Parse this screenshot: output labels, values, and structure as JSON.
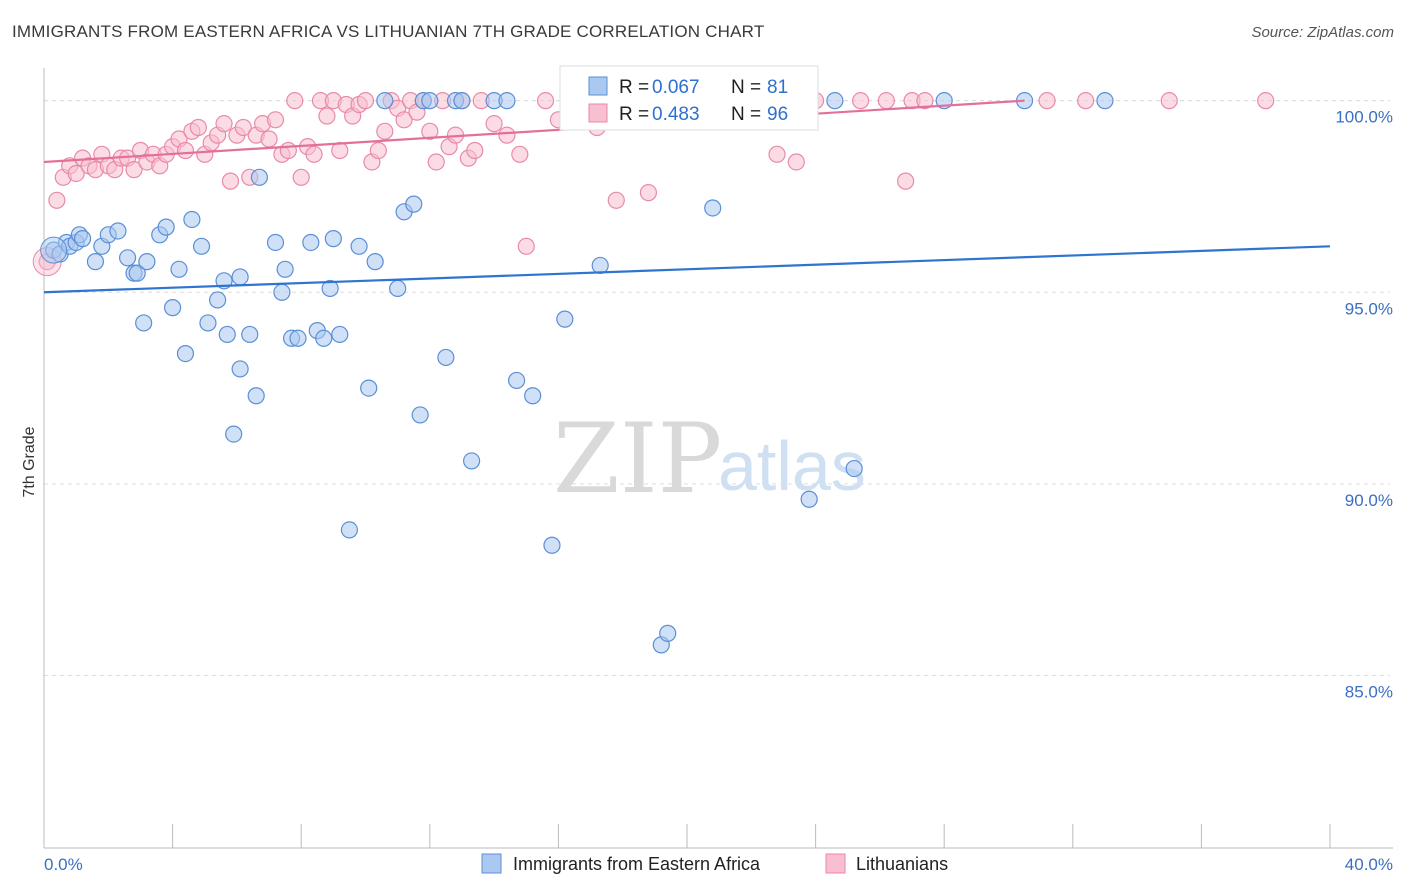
{
  "header": {
    "title": "IMMIGRANTS FROM EASTERN AFRICA VS LITHUANIAN 7TH GRADE CORRELATION CHART",
    "source": "Source: ZipAtlas.com"
  },
  "watermark": {
    "zip": "ZIP",
    "atlas": "atlas"
  },
  "colors": {
    "blue_fill": "#aac8f0",
    "blue_stroke": "#5b8fd6",
    "blue_line": "#2f74d0",
    "pink_fill": "#f8bfd0",
    "pink_stroke": "#e98aa8",
    "pink_line": "#e2709a",
    "grid": "#dddddd",
    "axis_text": "#3a6fc4"
  },
  "stats": [
    {
      "r_label": "R = ",
      "r_value": "0.067",
      "n_label": "N = ",
      "n_value": "81"
    },
    {
      "r_label": "R = ",
      "r_value": "0.483",
      "n_label": "N = ",
      "n_value": "96"
    }
  ],
  "chart_data": {
    "type": "scatter",
    "title": "IMMIGRANTS FROM EASTERN AFRICA VS LITHUANIAN 7TH GRADE CORRELATION CHART",
    "xlabel": "",
    "ylabel": "7th Grade",
    "xlim": [
      0,
      40
    ],
    "ylim": [
      80.5,
      100.8
    ],
    "x_tick_labels": [
      "0.0%",
      "40.0%"
    ],
    "y_ticks": [
      85,
      90,
      95,
      100
    ],
    "y_tick_labels": [
      "85.0%",
      "90.0%",
      "95.0%",
      "100.0%"
    ],
    "grid": true,
    "legend_position": "bottom",
    "series": [
      {
        "name": "Immigrants from Eastern Africa",
        "R": 0.067,
        "N": 81,
        "trend": {
          "x": [
            0,
            40
          ],
          "y": [
            95.0,
            96.2
          ]
        },
        "points": [
          [
            0.3,
            96.1
          ],
          [
            0.5,
            96.0
          ],
          [
            0.7,
            96.3
          ],
          [
            0.8,
            96.2
          ],
          [
            1.0,
            96.3
          ],
          [
            1.1,
            96.5
          ],
          [
            1.2,
            96.4
          ],
          [
            1.6,
            95.8
          ],
          [
            1.8,
            96.2
          ],
          [
            2.0,
            96.5
          ],
          [
            2.3,
            96.6
          ],
          [
            2.6,
            95.9
          ],
          [
            2.8,
            95.5
          ],
          [
            2.9,
            95.5
          ],
          [
            3.1,
            94.2
          ],
          [
            3.2,
            95.8
          ],
          [
            3.6,
            96.5
          ],
          [
            3.8,
            96.7
          ],
          [
            4.0,
            94.6
          ],
          [
            4.2,
            95.6
          ],
          [
            4.4,
            93.4
          ],
          [
            4.6,
            96.9
          ],
          [
            4.9,
            96.2
          ],
          [
            5.1,
            94.2
          ],
          [
            5.4,
            94.8
          ],
          [
            5.6,
            95.3
          ],
          [
            5.7,
            93.9
          ],
          [
            5.9,
            91.3
          ],
          [
            6.1,
            93.0
          ],
          [
            6.1,
            95.4
          ],
          [
            6.4,
            93.9
          ],
          [
            6.6,
            92.3
          ],
          [
            6.7,
            98.0
          ],
          [
            7.2,
            96.3
          ],
          [
            7.4,
            95.0
          ],
          [
            7.5,
            95.6
          ],
          [
            7.7,
            93.8
          ],
          [
            7.9,
            93.8
          ],
          [
            8.3,
            96.3
          ],
          [
            8.5,
            94.0
          ],
          [
            8.7,
            93.8
          ],
          [
            8.9,
            95.1
          ],
          [
            9.0,
            96.4
          ],
          [
            9.2,
            93.9
          ],
          [
            9.5,
            88.8
          ],
          [
            9.8,
            96.2
          ],
          [
            10.1,
            92.5
          ],
          [
            10.3,
            95.8
          ],
          [
            10.6,
            100.0
          ],
          [
            11.0,
            95.1
          ],
          [
            11.2,
            97.1
          ],
          [
            11.5,
            97.3
          ],
          [
            11.7,
            91.8
          ],
          [
            11.8,
            100.0
          ],
          [
            12.0,
            100.0
          ],
          [
            12.5,
            93.3
          ],
          [
            12.8,
            100.0
          ],
          [
            13.0,
            100.0
          ],
          [
            13.3,
            90.6
          ],
          [
            14.0,
            100.0
          ],
          [
            14.4,
            100.0
          ],
          [
            14.7,
            92.7
          ],
          [
            15.2,
            92.3
          ],
          [
            15.8,
            88.4
          ],
          [
            16.2,
            94.3
          ],
          [
            16.6,
            100.0
          ],
          [
            17.3,
            95.7
          ],
          [
            17.6,
            100.0
          ],
          [
            17.9,
            100.0
          ],
          [
            18.1,
            100.0
          ],
          [
            19.2,
            85.8
          ],
          [
            19.4,
            86.1
          ],
          [
            20.8,
            97.2
          ],
          [
            22.1,
            100.0
          ],
          [
            22.8,
            100.0
          ],
          [
            23.8,
            89.6
          ],
          [
            24.6,
            100.0
          ],
          [
            25.2,
            90.4
          ],
          [
            28.0,
            100.0
          ],
          [
            30.5,
            100.0
          ],
          [
            33.0,
            100.0
          ]
        ]
      },
      {
        "name": "Lithuanians",
        "R": 0.483,
        "N": 96,
        "trend": {
          "x": [
            0,
            30.5
          ],
          "y": [
            98.4,
            100.0
          ]
        },
        "points": [
          [
            0.1,
            95.8
          ],
          [
            0.4,
            97.4
          ],
          [
            0.6,
            98.0
          ],
          [
            0.8,
            98.3
          ],
          [
            1.0,
            98.1
          ],
          [
            1.2,
            98.5
          ],
          [
            1.4,
            98.3
          ],
          [
            1.6,
            98.2
          ],
          [
            1.8,
            98.6
          ],
          [
            2.0,
            98.3
          ],
          [
            2.2,
            98.2
          ],
          [
            2.4,
            98.5
          ],
          [
            2.6,
            98.5
          ],
          [
            2.8,
            98.2
          ],
          [
            3.0,
            98.7
          ],
          [
            3.2,
            98.4
          ],
          [
            3.4,
            98.6
          ],
          [
            3.6,
            98.3
          ],
          [
            3.8,
            98.6
          ],
          [
            4.0,
            98.8
          ],
          [
            4.2,
            99.0
          ],
          [
            4.4,
            98.7
          ],
          [
            4.6,
            99.2
          ],
          [
            4.8,
            99.3
          ],
          [
            5.0,
            98.6
          ],
          [
            5.2,
            98.9
          ],
          [
            5.4,
            99.1
          ],
          [
            5.6,
            99.4
          ],
          [
            5.8,
            97.9
          ],
          [
            6.0,
            99.1
          ],
          [
            6.2,
            99.3
          ],
          [
            6.4,
            98.0
          ],
          [
            6.6,
            99.1
          ],
          [
            6.8,
            99.4
          ],
          [
            7.0,
            99.0
          ],
          [
            7.2,
            99.5
          ],
          [
            7.4,
            98.6
          ],
          [
            7.6,
            98.7
          ],
          [
            7.8,
            100.0
          ],
          [
            8.0,
            98.0
          ],
          [
            8.2,
            98.8
          ],
          [
            8.4,
            98.6
          ],
          [
            8.6,
            100.0
          ],
          [
            8.8,
            99.6
          ],
          [
            9.0,
            100.0
          ],
          [
            9.2,
            98.7
          ],
          [
            9.4,
            99.9
          ],
          [
            9.6,
            99.6
          ],
          [
            9.8,
            99.9
          ],
          [
            10.0,
            100.0
          ],
          [
            10.2,
            98.4
          ],
          [
            10.4,
            98.7
          ],
          [
            10.6,
            99.2
          ],
          [
            10.8,
            100.0
          ],
          [
            11.0,
            99.8
          ],
          [
            11.2,
            99.5
          ],
          [
            11.4,
            100.0
          ],
          [
            11.6,
            99.7
          ],
          [
            11.8,
            100.0
          ],
          [
            12.0,
            99.2
          ],
          [
            12.2,
            98.4
          ],
          [
            12.4,
            100.0
          ],
          [
            12.6,
            98.8
          ],
          [
            12.8,
            99.1
          ],
          [
            13.0,
            100.0
          ],
          [
            13.2,
            98.5
          ],
          [
            13.4,
            98.7
          ],
          [
            13.6,
            100.0
          ],
          [
            14.0,
            99.4
          ],
          [
            14.4,
            99.1
          ],
          [
            14.8,
            98.6
          ],
          [
            15.0,
            96.2
          ],
          [
            15.6,
            100.0
          ],
          [
            16.0,
            99.5
          ],
          [
            16.6,
            100.0
          ],
          [
            17.2,
            99.3
          ],
          [
            17.8,
            97.4
          ],
          [
            18.2,
            100.0
          ],
          [
            18.8,
            97.6
          ],
          [
            19.4,
            100.0
          ],
          [
            20.0,
            100.0
          ],
          [
            21.0,
            100.0
          ],
          [
            22.0,
            100.0
          ],
          [
            22.8,
            98.6
          ],
          [
            23.0,
            100.0
          ],
          [
            23.4,
            98.4
          ],
          [
            24.0,
            100.0
          ],
          [
            25.4,
            100.0
          ],
          [
            26.2,
            100.0
          ],
          [
            26.8,
            97.9
          ],
          [
            27.0,
            100.0
          ],
          [
            27.4,
            100.0
          ],
          [
            31.2,
            100.0
          ],
          [
            32.4,
            100.0
          ],
          [
            35.0,
            100.0
          ],
          [
            38.0,
            100.0
          ]
        ]
      }
    ]
  },
  "legend": {
    "items": [
      {
        "label": "Immigrants from Eastern Africa"
      },
      {
        "label": "Lithuanians"
      }
    ]
  }
}
